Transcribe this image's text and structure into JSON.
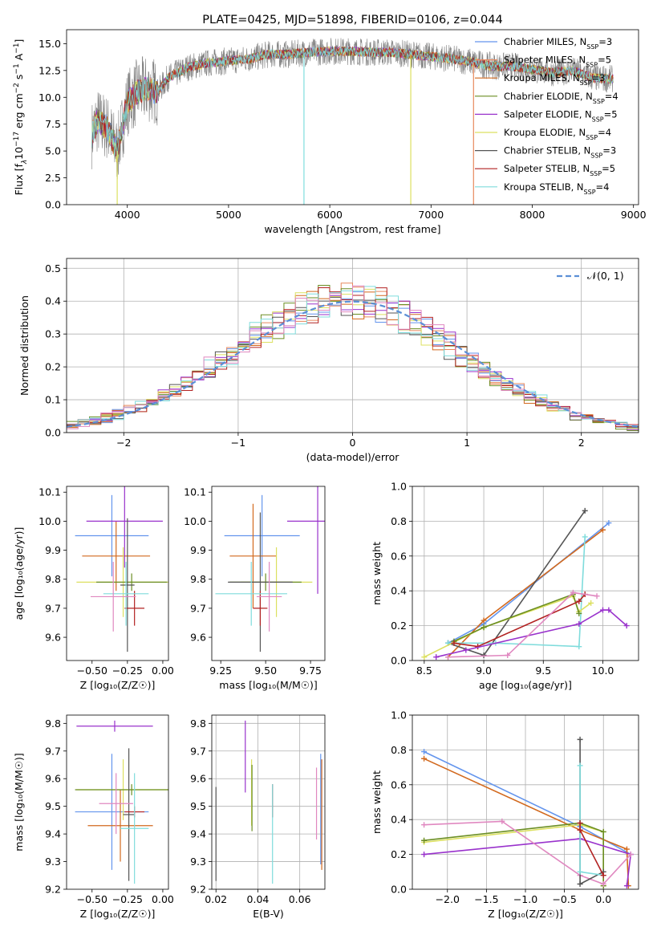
{
  "colors": {
    "Chabrier MILES": "#6495ed",
    "Salpeter MILES": "#e8885c",
    "Kroupa MILES": "#d2691e",
    "Chabrier ELODIE": "#6b8e23",
    "Salpeter ELODIE": "#9932cc",
    "Kroupa ELODIE": "#dce060",
    "Chabrier STELIB": "#555555",
    "Salpeter STELIB": "#b22222",
    "Kroupa STELIB": "#7fdcdc",
    "normal": "#5b8fd6",
    "pink": "#e088c0"
  },
  "chart_data": [
    {
      "id": "spectrum",
      "type": "line",
      "title": "PLATE=0425, MJD=51898, FIBERID=0106, z=0.044",
      "xlabel": "wavelength [Angstrom, rest frame]",
      "ylabel_parts": [
        "Flux [f",
        "λ",
        "10",
        "−17",
        " erg cm",
        "−2",
        " s",
        "−1",
        " A",
        "−1",
        "]"
      ],
      "xlim": [
        3400,
        9050
      ],
      "ylim": [
        0,
        16.3
      ],
      "xticks": [
        "4000",
        "5000",
        "6000",
        "7000",
        "8000",
        "9000"
      ],
      "xtick_values": [
        4000,
        5000,
        6000,
        7000,
        8000,
        9000
      ],
      "yticks": [
        "0.0",
        "2.5",
        "5.0",
        "7.5",
        "10.0",
        "12.5",
        "15.0"
      ],
      "ytick_values": [
        0,
        2.5,
        5,
        7.5,
        10,
        12.5,
        15
      ],
      "legend_position": "right",
      "series": [
        {
          "name": "Chabrier MILES, N",
          "n": "3"
        },
        {
          "name": "Salpeter MILES, N",
          "n": "5"
        },
        {
          "name": "Kroupa MILES, N",
          "n": "3"
        },
        {
          "name": "Chabrier ELODIE, N",
          "n": "4"
        },
        {
          "name": "Salpeter ELODIE, N",
          "n": "5"
        },
        {
          "name": "Kroupa ELODIE, N",
          "n": "4"
        },
        {
          "name": "Chabrier STELIB, N",
          "n": "3"
        },
        {
          "name": "Salpeter STELIB, N",
          "n": "5"
        },
        {
          "name": "Kroupa STELIB, N",
          "n": "4"
        }
      ],
      "n_sub": "SSP",
      "continuum": {
        "x": [
          3650,
          3700,
          3800,
          3900,
          4000,
          4100,
          4200,
          4300,
          4400,
          4600,
          4800,
          5000,
          5200,
          5400,
          5600,
          5800,
          6000,
          6200,
          6400,
          6600,
          6800,
          7000,
          7200,
          7400,
          7600,
          7800,
          8000,
          8200,
          8400,
          8600,
          8800
        ],
        "y": [
          6.5,
          7.8,
          7.2,
          5.0,
          9.5,
          10.5,
          10.8,
          10.5,
          11.8,
          12.8,
          13.2,
          13.4,
          13.6,
          14.0,
          14.0,
          14.2,
          14.3,
          14.3,
          14.2,
          14.2,
          14.0,
          13.8,
          13.6,
          13.3,
          12.9,
          12.9,
          12.6,
          12.3,
          12.5,
          11.8,
          11.7
        ]
      },
      "spikes": [
        {
          "x": 3900,
          "y_min": 0.0,
          "color_key": "Kroupa ELODIE"
        },
        {
          "x": 5745,
          "y_min": 0.0,
          "color_key": "Kroupa STELIB"
        },
        {
          "x": 6800,
          "y_min": 0.0,
          "color_key": "Kroupa ELODIE"
        },
        {
          "x": 7420,
          "y_min": 0.0,
          "color_key": "Salpeter MILES"
        }
      ]
    },
    {
      "id": "residuals",
      "type": "histogram",
      "xlabel": "(data-model)/error",
      "ylabel": "Normed distribution",
      "xlim": [
        -2.5,
        2.5
      ],
      "ylim": [
        0,
        0.53
      ],
      "xticks": [
        "−2",
        "−1",
        "0",
        "1",
        "2"
      ],
      "xtick_values": [
        -2,
        -1,
        0,
        1,
        2
      ],
      "yticks": [
        "0.0",
        "0.1",
        "0.2",
        "0.3",
        "0.4",
        "0.5"
      ],
      "ytick_values": [
        0,
        0.1,
        0.2,
        0.3,
        0.4,
        0.5
      ],
      "grid": true,
      "legend_label": "𝒩(0, 1)",
      "legend_position": "top-right",
      "bin_width": 0.1
    },
    {
      "id": "age-vs-Z",
      "type": "errorbar",
      "xlabel": "Z [log₁₀(Z/Z☉)]",
      "ylabel": "age  [log₁₀(age/yr)]",
      "xlim": [
        -0.68,
        0.04
      ],
      "ylim": [
        9.52,
        10.12
      ],
      "xticks": [
        "−0.50",
        "−0.25",
        "0.00"
      ],
      "xtick_values": [
        -0.5,
        -0.25,
        0
      ],
      "yticks": [
        "9.6",
        "9.7",
        "9.8",
        "9.9",
        "10.0",
        "10.1"
      ],
      "ytick_values": [
        9.6,
        9.7,
        9.8,
        9.9,
        10.0,
        10.1
      ],
      "grid": false,
      "points": [
        {
          "color_key": "Chabrier MILES",
          "x": -0.36,
          "y": 9.95,
          "xerr": 0.26,
          "yerr": 0.14
        },
        {
          "color_key": "Kroupa MILES",
          "x": -0.33,
          "y": 9.88,
          "xerr": 0.24,
          "yerr": 0.12
        },
        {
          "color_key": "Salpeter ELODIE",
          "x": -0.27,
          "y": 10.0,
          "xerr": 0.27,
          "yerr": 0.16
        },
        {
          "color_key": "Kroupa ELODIE",
          "x": -0.28,
          "y": 9.79,
          "xerr": 0.33,
          "yerr": 0.12
        },
        {
          "color_key": "Chabrier ELODIE",
          "x": -0.22,
          "y": 9.79,
          "xerr": 0.25,
          "yerr": 0.03
        },
        {
          "color_key": "Chabrier STELIB",
          "x": -0.25,
          "y": 9.78,
          "xerr": 0.05,
          "yerr": 0.23
        },
        {
          "color_key": "Salpeter STELIB",
          "x": -0.2,
          "y": 9.7,
          "xerr": 0.07,
          "yerr": 0.06
        },
        {
          "color_key": "Kroupa STELIB",
          "x": -0.26,
          "y": 9.75,
          "xerr": 0.16,
          "yerr": 0.11
        },
        {
          "color_key": "pink",
          "x": -0.35,
          "y": 9.74,
          "xerr": 0.16,
          "yerr": 0.12
        }
      ]
    },
    {
      "id": "age-vs-mass",
      "type": "errorbar",
      "xlabel": "mass [log₁₀(M/M☉)]",
      "ylabel": "",
      "xlim": [
        9.2,
        9.83
      ],
      "ylim": [
        9.52,
        10.12
      ],
      "xticks": [
        "9.25",
        "9.50",
        "9.75"
      ],
      "xtick_values": [
        9.25,
        9.5,
        9.75
      ],
      "yticks": [
        "9.6",
        "9.7",
        "9.8",
        "9.9",
        "10.0",
        "10.1"
      ],
      "ytick_values": [
        9.6,
        9.7,
        9.8,
        9.9,
        10.0,
        10.1
      ],
      "grid": false,
      "points": [
        {
          "color_key": "Chabrier MILES",
          "x": 9.48,
          "y": 9.95,
          "xerr": 0.21,
          "yerr": 0.14
        },
        {
          "color_key": "Kroupa MILES",
          "x": 9.43,
          "y": 9.88,
          "xerr": 0.13,
          "yerr": 0.18
        },
        {
          "color_key": "Salpeter ELODIE",
          "x": 9.79,
          "y": 10.0,
          "xerr": 0.17,
          "yerr": 0.25
        },
        {
          "color_key": "Kroupa ELODIE",
          "x": 9.56,
          "y": 9.79,
          "xerr": 0.2,
          "yerr": 0.12
        },
        {
          "color_key": "Chabrier ELODIE",
          "x": 9.5,
          "y": 9.79,
          "xerr": 0.2,
          "yerr": 0.03
        },
        {
          "color_key": "Chabrier STELIB",
          "x": 9.47,
          "y": 9.79,
          "xerr": 0.18,
          "yerr": 0.24
        },
        {
          "color_key": "Salpeter STELIB",
          "x": 9.47,
          "y": 9.7,
          "xerr": 0.04,
          "yerr": 0.06
        },
        {
          "color_key": "Kroupa STELIB",
          "x": 9.42,
          "y": 9.75,
          "xerr": 0.2,
          "yerr": 0.11
        },
        {
          "color_key": "pink",
          "x": 9.52,
          "y": 9.74,
          "xerr": 0.07,
          "yerr": 0.12
        }
      ]
    },
    {
      "id": "mass-weight-vs-age",
      "type": "line",
      "xlabel": "age  [log₁₀(age/yr)]",
      "ylabel": "mass weight",
      "xlim": [
        8.4,
        10.3
      ],
      "ylim": [
        0,
        1.0
      ],
      "xticks": [
        "8.5",
        "9.0",
        "9.5",
        "10.0"
      ],
      "xtick_values": [
        8.5,
        9.0,
        9.5,
        10.0
      ],
      "yticks": [
        "0.0",
        "0.2",
        "0.4",
        "0.6",
        "0.8",
        "1.0"
      ],
      "ytick_values": [
        0,
        0.2,
        0.4,
        0.6,
        0.8,
        1.0
      ],
      "grid": true,
      "series": [
        {
          "color_key": "Chabrier MILES",
          "x": [
            8.7,
            9.0,
            10.05
          ],
          "y": [
            0.1,
            0.21,
            0.79
          ]
        },
        {
          "color_key": "Kroupa MILES",
          "x": [
            8.7,
            9.0,
            10.0
          ],
          "y": [
            0.02,
            0.23,
            0.75
          ]
        },
        {
          "color_key": "Chabrier STELIB",
          "x": [
            8.7,
            9.0,
            9.85
          ],
          "y": [
            0.1,
            0.03,
            0.86
          ]
        },
        {
          "color_key": "Kroupa STELIB",
          "x": [
            8.7,
            9.1,
            9.8,
            9.85
          ],
          "y": [
            0.1,
            0.1,
            0.08,
            0.71
          ]
        },
        {
          "color_key": "Kroupa ELODIE",
          "x": [
            8.5,
            9.0,
            9.75,
            9.8,
            9.9
          ],
          "y": [
            0.02,
            0.19,
            0.37,
            0.28,
            0.33
          ]
        },
        {
          "color_key": "Chabrier ELODIE",
          "x": [
            8.75,
            9.0,
            9.75,
            9.8
          ],
          "y": [
            0.11,
            0.19,
            0.38,
            0.27
          ]
        },
        {
          "color_key": "Salpeter STELIB",
          "x": [
            8.75,
            8.95,
            9.8,
            9.85
          ],
          "y": [
            0.1,
            0.08,
            0.34,
            0.38
          ]
        },
        {
          "color_key": "Salpeter ELODIE",
          "x": [
            8.6,
            8.85,
            9.8,
            10.0,
            10.05,
            10.2
          ],
          "y": [
            0.02,
            0.06,
            0.21,
            0.29,
            0.29,
            0.2
          ]
        },
        {
          "color_key": "pink",
          "x": [
            8.7,
            9.2,
            9.75,
            9.95
          ],
          "y": [
            0.02,
            0.03,
            0.39,
            0.37
          ]
        }
      ]
    },
    {
      "id": "mass-vs-Z",
      "type": "errorbar",
      "xlabel": "Z [log₁₀(Z/Z☉)]",
      "ylabel": "mass [log₁₀(M/M☉)]",
      "xlim": [
        -0.68,
        0.04
      ],
      "ylim": [
        9.2,
        9.83
      ],
      "xticks": [
        "−0.50",
        "−0.25",
        "0.00"
      ],
      "xtick_values": [
        -0.5,
        -0.25,
        0
      ],
      "yticks": [
        "9.2",
        "9.3",
        "9.4",
        "9.5",
        "9.6",
        "9.7",
        "9.8"
      ],
      "ytick_values": [
        9.2,
        9.3,
        9.4,
        9.5,
        9.6,
        9.7,
        9.8
      ],
      "grid": false,
      "points": [
        {
          "color_key": "Chabrier MILES",
          "x": -0.36,
          "y": 9.48,
          "xerr": 0.26,
          "yerr": 0.21
        },
        {
          "color_key": "Kroupa MILES",
          "x": -0.3,
          "y": 9.43,
          "xerr": 0.23,
          "yerr": 0.13
        },
        {
          "color_key": "Salpeter ELODIE",
          "x": -0.34,
          "y": 9.79,
          "xerr": 0.27,
          "yerr": 0.02
        },
        {
          "color_key": "Kroupa ELODIE",
          "x": -0.28,
          "y": 9.56,
          "xerr": 0.33,
          "yerr": 0.11
        },
        {
          "color_key": "Chabrier ELODIE",
          "x": -0.22,
          "y": 9.56,
          "xerr": 0.4,
          "yerr": 0.02
        },
        {
          "color_key": "Chabrier STELIB",
          "x": -0.24,
          "y": 9.47,
          "xerr": 0.04,
          "yerr": 0.24
        },
        {
          "color_key": "Salpeter STELIB",
          "x": -0.2,
          "y": 9.48,
          "xerr": 0.07,
          "yerr": 0.02
        },
        {
          "color_key": "Kroupa STELIB",
          "x": -0.2,
          "y": 9.42,
          "xerr": 0.1,
          "yerr": 0.2
        },
        {
          "color_key": "pink",
          "x": -0.33,
          "y": 9.51,
          "xerr": 0.12,
          "yerr": 0.11
        }
      ]
    },
    {
      "id": "mass-vs-EBV",
      "type": "errorbar",
      "xlabel": "E(B-V)",
      "ylabel": "",
      "xlim": [
        0.018,
        0.072
      ],
      "ylim": [
        9.2,
        9.83
      ],
      "xticks": [
        "0.02",
        "0.04",
        "0.06"
      ],
      "xtick_values": [
        0.02,
        0.04,
        0.06
      ],
      "yticks": [
        "9.2",
        "9.3",
        "9.4",
        "9.5",
        "9.6",
        "9.7",
        "9.8"
      ],
      "ytick_values": [
        9.2,
        9.3,
        9.4,
        9.5,
        9.6,
        9.7,
        9.8
      ],
      "grid": true,
      "points": [
        {
          "color_key": "Chabrier STELIB",
          "x": 0.02,
          "y": 9.4,
          "xerr": 0,
          "yerr": 0.17
        },
        {
          "color_key": "Salpeter ELODIE",
          "x": 0.034,
          "y": 9.68,
          "xerr": 0,
          "yerr": 0.13
        },
        {
          "color_key": "Kroupa ELODIE",
          "x": 0.037,
          "y": 9.55,
          "xerr": 0,
          "yerr": 0.12
        },
        {
          "color_key": "Chabrier ELODIE",
          "x": 0.0372,
          "y": 9.53,
          "xerr": 0,
          "yerr": 0.12
        },
        {
          "color_key": "Salpeter STELIB",
          "x": 0.047,
          "y": 9.52,
          "xerr": 0,
          "yerr": 0.06
        },
        {
          "color_key": "Kroupa STELIB",
          "x": 0.047,
          "y": 9.4,
          "xerr": 0,
          "yerr": 0.18
        },
        {
          "color_key": "pink",
          "x": 0.068,
          "y": 9.51,
          "xerr": 0,
          "yerr": 0.13
        },
        {
          "color_key": "Chabrier MILES",
          "x": 0.07,
          "y": 9.49,
          "xerr": 0,
          "yerr": 0.2
        },
        {
          "color_key": "Kroupa MILES",
          "x": 0.0705,
          "y": 9.47,
          "xerr": 0,
          "yerr": 0.2
        }
      ]
    },
    {
      "id": "mass-weight-vs-Z",
      "type": "line",
      "xlabel": "Z [log₁₀(Z/Z☉)]",
      "ylabel": "mass weight",
      "xlim": [
        -2.45,
        0.45
      ],
      "ylim": [
        0,
        1.0
      ],
      "xticks": [
        "−2.0",
        "−1.5",
        "−1.0",
        "−0.5",
        "0.0"
      ],
      "xtick_values": [
        -2.0,
        -1.5,
        -1.0,
        -0.5,
        0.0
      ],
      "yticks": [
        "0.0",
        "0.2",
        "0.4",
        "0.6",
        "0.8",
        "1.0"
      ],
      "ytick_values": [
        0,
        0.2,
        0.4,
        0.6,
        0.8,
        1.0
      ],
      "grid": true,
      "series": [
        {
          "color_key": "Chabrier MILES",
          "x": [
            -2.3,
            -0.3,
            0.35
          ],
          "y": [
            0.79,
            0.36,
            0.2
          ]
        },
        {
          "color_key": "Kroupa MILES",
          "x": [
            -2.3,
            -0.3,
            0.3,
            0.32
          ],
          "y": [
            0.75,
            0.34,
            0.23,
            0.02
          ]
        },
        {
          "color_key": "Kroupa ELODIE",
          "x": [
            -2.3,
            -0.3,
            0.0,
            0.0
          ],
          "y": [
            0.27,
            0.37,
            0.33,
            0.02
          ]
        },
        {
          "color_key": "Chabrier ELODIE",
          "x": [
            -2.3,
            -0.3,
            0.0,
            0.0
          ],
          "y": [
            0.28,
            0.38,
            0.33,
            0.02
          ]
        },
        {
          "color_key": "Salpeter ELODIE",
          "x": [
            -2.3,
            -0.3,
            0.35,
            0.3
          ],
          "y": [
            0.2,
            0.29,
            0.2,
            0.02
          ]
        },
        {
          "color_key": "pink",
          "x": [
            -2.3,
            -1.3,
            -0.3,
            0.0,
            0.35
          ],
          "y": [
            0.37,
            0.39,
            0.08,
            0.03,
            0.2
          ]
        },
        {
          "color_key": "Chabrier STELIB",
          "x": [
            -0.3,
            -0.3,
            0.0
          ],
          "y": [
            0.86,
            0.03,
            0.1
          ]
        },
        {
          "color_key": "Kroupa STELIB",
          "x": [
            -0.3,
            -0.3,
            0.0
          ],
          "y": [
            0.71,
            0.1,
            0.08
          ]
        },
        {
          "color_key": "Salpeter STELIB",
          "x": [
            -0.3,
            -0.3,
            0.0
          ],
          "y": [
            0.38,
            0.34,
            0.08
          ]
        }
      ]
    }
  ]
}
